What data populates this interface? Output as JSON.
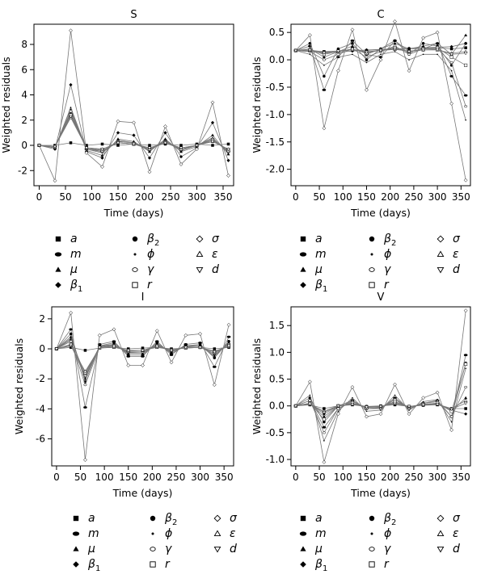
{
  "legend_items": [
    {
      "sym": "a",
      "sub": "",
      "marker": "square-filled"
    },
    {
      "sym": "m",
      "sub": "",
      "marker": "ellipse-filled"
    },
    {
      "sym": "μ",
      "sub": "",
      "marker": "triangle-filled"
    },
    {
      "sym": "β",
      "sub": "1",
      "marker": "diamond-filled"
    },
    {
      "sym": "β",
      "sub": "2",
      "marker": "circle-filled"
    },
    {
      "sym": "ϕ",
      "sub": "",
      "marker": "dot"
    },
    {
      "sym": "γ",
      "sub": "",
      "marker": "circle-open"
    },
    {
      "sym": "r",
      "sub": "",
      "marker": "square-open"
    },
    {
      "sym": "σ",
      "sub": "",
      "marker": "diamond-open"
    },
    {
      "sym": "ε",
      "sub": "",
      "marker": "triangle-open"
    },
    {
      "sym": "d",
      "sub": "",
      "marker": "triangle-down-open"
    }
  ],
  "chart_data": [
    {
      "type": "line",
      "title": "S",
      "xlabel": "Time (days)",
      "ylabel": "Weighted residuals",
      "xlim": [
        -10,
        370
      ],
      "ylim": [
        -3.2,
        9.6
      ],
      "xticks": [
        0,
        50,
        100,
        150,
        200,
        250,
        300,
        350
      ],
      "yticks": [
        -2,
        0,
        2,
        4,
        6,
        8
      ],
      "x": [
        0,
        30,
        60,
        90,
        120,
        150,
        180,
        210,
        240,
        270,
        300,
        330,
        360
      ],
      "series": [
        {
          "param": "a",
          "values": [
            0,
            0.0,
            0.2,
            0.0,
            0.1,
            0.0,
            0.1,
            0.0,
            0.1,
            0.0,
            0.1,
            0.0,
            0.1
          ]
        },
        {
          "param": "m",
          "values": [
            0,
            -0.1,
            2.6,
            -0.3,
            -0.5,
            0.3,
            0.2,
            -0.4,
            0.4,
            -0.4,
            0.0,
            0.5,
            -0.5
          ]
        },
        {
          "param": "μ",
          "values": [
            0,
            -0.2,
            2.9,
            -0.4,
            -0.8,
            0.5,
            0.3,
            -0.5,
            0.5,
            -0.5,
            -0.1,
            0.8,
            -0.7
          ]
        },
        {
          "param": "β1",
          "values": [
            0,
            -0.3,
            4.8,
            -0.5,
            -1.0,
            1.0,
            0.8,
            -1.0,
            1.0,
            -0.9,
            -0.2,
            1.8,
            -1.2
          ]
        },
        {
          "param": "β2",
          "values": [
            0,
            -0.1,
            2.5,
            -0.2,
            -0.4,
            0.2,
            0.1,
            -0.3,
            0.3,
            -0.3,
            0.0,
            0.4,
            -0.4
          ]
        },
        {
          "param": "ϕ",
          "values": [
            0,
            -0.2,
            3.0,
            -0.3,
            -0.6,
            0.4,
            0.2,
            -0.4,
            0.4,
            -0.4,
            0.0,
            0.6,
            -0.6
          ]
        },
        {
          "param": "γ",
          "values": [
            0,
            -0.2,
            2.7,
            -0.2,
            -0.5,
            0.3,
            0.2,
            -0.3,
            0.3,
            -0.3,
            0.0,
            0.5,
            -0.5
          ]
        },
        {
          "param": "r",
          "values": [
            0,
            -0.1,
            2.4,
            -0.2,
            -0.4,
            0.2,
            0.1,
            -0.3,
            0.2,
            -0.3,
            0.0,
            0.4,
            -0.4
          ]
        },
        {
          "param": "σ",
          "values": [
            0,
            -2.8,
            9.1,
            -0.6,
            -1.7,
            1.9,
            1.8,
            -2.1,
            1.5,
            -1.5,
            -0.3,
            3.4,
            -2.4
          ]
        },
        {
          "param": "ε",
          "values": [
            0,
            -0.1,
            2.2,
            -0.2,
            -0.3,
            0.2,
            0.1,
            -0.2,
            0.2,
            -0.2,
            0.0,
            0.3,
            -0.3
          ]
        },
        {
          "param": "d",
          "values": [
            0,
            -0.1,
            2.3,
            -0.2,
            -0.3,
            0.2,
            0.1,
            -0.2,
            0.2,
            -0.2,
            0.0,
            0.3,
            -0.3
          ]
        }
      ]
    },
    {
      "type": "line",
      "title": "C",
      "xlabel": "Time (days)",
      "ylabel": "Weighted residuals",
      "xlim": [
        -10,
        370
      ],
      "ylim": [
        -2.3,
        0.65
      ],
      "xticks": [
        0,
        50,
        100,
        150,
        200,
        250,
        300,
        350
      ],
      "yticks": [
        -2.0,
        -1.5,
        -1.0,
        -0.5,
        0.0,
        0.5
      ],
      "ytick_labels": [
        "-2.0",
        "-1.5",
        "-1.0",
        "-0.5",
        "0.0",
        "0.5"
      ],
      "x": [
        0,
        30,
        60,
        90,
        120,
        150,
        180,
        210,
        240,
        270,
        300,
        330,
        360
      ],
      "series": [
        {
          "param": "a",
          "values": [
            0.17,
            0.17,
            0.15,
            0.16,
            0.18,
            0.17,
            0.19,
            0.2,
            0.2,
            0.21,
            0.22,
            0.2,
            0.22
          ]
        },
        {
          "param": "m",
          "values": [
            0.17,
            0.25,
            -0.55,
            0.05,
            0.35,
            0.1,
            0.05,
            0.35,
            0.15,
            0.2,
            0.3,
            -0.3,
            -0.65
          ]
        },
        {
          "param": "μ",
          "values": [
            0.17,
            0.2,
            0.05,
            0.15,
            0.25,
            0.1,
            0.2,
            0.3,
            0.2,
            0.25,
            0.3,
            0.1,
            0.45
          ]
        },
        {
          "param": "β1",
          "values": [
            0.17,
            0.15,
            0.12,
            0.14,
            0.16,
            0.18,
            0.19,
            0.2,
            0.21,
            0.22,
            0.23,
            0.24,
            0.3
          ]
        },
        {
          "param": "β2",
          "values": [
            0.17,
            0.3,
            -0.3,
            0.2,
            0.3,
            0.0,
            0.2,
            0.35,
            0.1,
            0.3,
            0.25,
            -0.1,
            0.3
          ]
        },
        {
          "param": "ϕ",
          "values": [
            0.17,
            0.1,
            -0.1,
            0.05,
            0.1,
            -0.05,
            0.1,
            0.15,
            0.0,
            0.1,
            0.1,
            -0.2,
            -1.1
          ]
        },
        {
          "param": "γ",
          "values": [
            0.17,
            0.15,
            0.0,
            0.1,
            0.2,
            0.05,
            0.15,
            0.25,
            0.1,
            0.2,
            0.2,
            -0.05,
            -0.85
          ]
        },
        {
          "param": "r",
          "values": [
            0.17,
            0.18,
            0.1,
            0.15,
            0.2,
            0.12,
            0.18,
            0.22,
            0.15,
            0.2,
            0.22,
            0.05,
            -0.1
          ]
        },
        {
          "param": "σ",
          "values": [
            0.17,
            0.45,
            -1.25,
            -0.2,
            0.55,
            -0.55,
            0.0,
            0.7,
            -0.2,
            0.4,
            0.5,
            -0.8,
            -2.2
          ]
        },
        {
          "param": "ε",
          "values": [
            0.17,
            0.18,
            0.14,
            0.16,
            0.18,
            0.15,
            0.17,
            0.19,
            0.16,
            0.18,
            0.18,
            0.12,
            0.15
          ]
        },
        {
          "param": "d",
          "values": [
            0.17,
            0.18,
            0.13,
            0.16,
            0.19,
            0.14,
            0.17,
            0.2,
            0.15,
            0.18,
            0.19,
            0.1,
            0.12
          ]
        }
      ]
    },
    {
      "type": "line",
      "title": "I",
      "xlabel": "Time (days)",
      "ylabel": "Weighted residuals",
      "xlim": [
        -10,
        370
      ],
      "ylim": [
        -7.8,
        2.8
      ],
      "xticks": [
        0,
        50,
        100,
        150,
        200,
        250,
        300,
        350
      ],
      "yticks": [
        -6,
        -4,
        -2,
        0,
        2
      ],
      "x": [
        0,
        30,
        60,
        90,
        120,
        150,
        180,
        210,
        240,
        270,
        300,
        330,
        360
      ],
      "series": [
        {
          "param": "a",
          "values": [
            0,
            0.1,
            -0.1,
            0.05,
            0.1,
            0.0,
            0.05,
            0.1,
            0.0,
            0.05,
            0.1,
            0.0,
            0.1
          ]
        },
        {
          "param": "m",
          "values": [
            0,
            1.3,
            -3.9,
            0.3,
            0.5,
            -0.5,
            -0.5,
            0.5,
            -0.4,
            0.3,
            0.4,
            -1.2,
            0.8
          ]
        },
        {
          "param": "μ",
          "values": [
            0,
            0.8,
            -2.0,
            0.2,
            0.3,
            -0.3,
            -0.3,
            0.3,
            -0.2,
            0.2,
            0.2,
            -0.5,
            0.4
          ]
        },
        {
          "param": "β1",
          "values": [
            0,
            0.6,
            -1.7,
            0.15,
            0.25,
            -0.25,
            -0.2,
            0.25,
            -0.2,
            0.15,
            0.2,
            -0.4,
            0.35
          ]
        },
        {
          "param": "β2",
          "values": [
            0,
            1.0,
            -2.2,
            0.2,
            0.4,
            -0.4,
            -0.4,
            0.4,
            -0.3,
            0.2,
            0.3,
            -0.6,
            0.5
          ]
        },
        {
          "param": "ϕ",
          "values": [
            0,
            0.7,
            -1.9,
            0.15,
            0.3,
            -0.3,
            -0.3,
            0.3,
            -0.2,
            0.2,
            0.2,
            -0.5,
            0.4
          ]
        },
        {
          "param": "γ",
          "values": [
            0,
            0.5,
            -2.4,
            0.1,
            0.2,
            -0.2,
            -0.2,
            0.2,
            -0.1,
            0.1,
            0.1,
            -0.3,
            0.3
          ]
        },
        {
          "param": "r",
          "values": [
            0,
            0.3,
            -1.6,
            0.1,
            0.2,
            -0.15,
            -0.1,
            0.2,
            -0.1,
            0.1,
            0.1,
            -0.2,
            0.2
          ]
        },
        {
          "param": "σ",
          "values": [
            0,
            2.4,
            -7.4,
            0.9,
            1.3,
            -1.1,
            -1.1,
            1.2,
            -0.9,
            0.9,
            1.0,
            -2.4,
            1.6
          ]
        },
        {
          "param": "ε",
          "values": [
            0,
            0.2,
            -1.5,
            0.05,
            0.1,
            -0.1,
            -0.1,
            0.1,
            -0.05,
            0.05,
            0.1,
            -0.15,
            0.15
          ]
        },
        {
          "param": "d",
          "values": [
            0,
            0.25,
            -1.8,
            0.1,
            0.15,
            -0.1,
            -0.1,
            0.15,
            -0.1,
            0.1,
            0.1,
            -0.2,
            0.2
          ]
        }
      ]
    },
    {
      "type": "line",
      "title": "V",
      "xlabel": "Time (days)",
      "ylabel": "Weighted residuals",
      "xlim": [
        -10,
        370
      ],
      "ylim": [
        -1.12,
        1.85
      ],
      "xticks": [
        0,
        50,
        100,
        150,
        200,
        250,
        300,
        350
      ],
      "yticks": [
        -1.0,
        -0.5,
        0.0,
        0.5,
        1.0,
        1.5
      ],
      "ytick_labels": [
        "-1.0",
        "-0.5",
        "0.0",
        "0.5",
        "1.0",
        "1.5"
      ],
      "x": [
        0,
        30,
        60,
        90,
        120,
        150,
        180,
        210,
        240,
        270,
        300,
        330,
        360
      ],
      "series": [
        {
          "param": "a",
          "values": [
            0,
            0.02,
            -0.05,
            0.0,
            0.02,
            -0.01,
            0.0,
            0.02,
            -0.01,
            0.01,
            0.02,
            -0.05,
            -0.05
          ]
        },
        {
          "param": "m",
          "values": [
            0,
            0.1,
            -0.4,
            -0.05,
            0.1,
            -0.05,
            -0.05,
            0.15,
            -0.05,
            0.05,
            0.1,
            -0.2,
            0.95
          ]
        },
        {
          "param": "μ",
          "values": [
            0,
            0.05,
            -0.2,
            0.0,
            0.05,
            -0.02,
            -0.02,
            0.08,
            -0.02,
            0.03,
            0.05,
            -0.1,
            0.15
          ]
        },
        {
          "param": "β1",
          "values": [
            0,
            0.04,
            -0.15,
            0.0,
            0.04,
            -0.02,
            -0.02,
            0.06,
            -0.02,
            0.02,
            0.04,
            -0.08,
            -0.15
          ]
        },
        {
          "param": "β2",
          "values": [
            0,
            0.15,
            -0.3,
            0.0,
            0.1,
            -0.05,
            -0.03,
            0.12,
            -0.03,
            0.05,
            0.08,
            -0.2,
            0.8
          ]
        },
        {
          "param": "ϕ",
          "values": [
            0,
            0.2,
            -0.65,
            -0.1,
            0.15,
            -0.1,
            -0.08,
            0.2,
            -0.08,
            0.08,
            0.12,
            -0.3,
            0.7
          ]
        },
        {
          "param": "γ",
          "values": [
            0,
            0.1,
            -0.5,
            -0.05,
            0.08,
            -0.05,
            -0.05,
            0.12,
            -0.05,
            0.05,
            0.08,
            -0.2,
            0.35
          ]
        },
        {
          "param": "r",
          "values": [
            0,
            0.05,
            -0.25,
            0.0,
            0.05,
            -0.03,
            -0.02,
            0.08,
            -0.02,
            0.03,
            0.05,
            -0.1,
            0.78
          ]
        },
        {
          "param": "σ",
          "values": [
            0,
            0.45,
            -1.05,
            -0.15,
            0.35,
            -0.2,
            -0.15,
            0.4,
            -0.15,
            0.15,
            0.25,
            -0.45,
            1.78
          ]
        },
        {
          "param": "ε",
          "values": [
            0,
            0.03,
            -0.1,
            0.0,
            0.03,
            -0.01,
            -0.01,
            0.04,
            -0.01,
            0.02,
            0.03,
            -0.05,
            0.1
          ]
        },
        {
          "param": "d",
          "values": [
            0,
            0.04,
            -0.12,
            0.0,
            0.03,
            -0.02,
            -0.01,
            0.05,
            -0.01,
            0.02,
            0.03,
            -0.06,
            0.05
          ]
        }
      ]
    }
  ]
}
